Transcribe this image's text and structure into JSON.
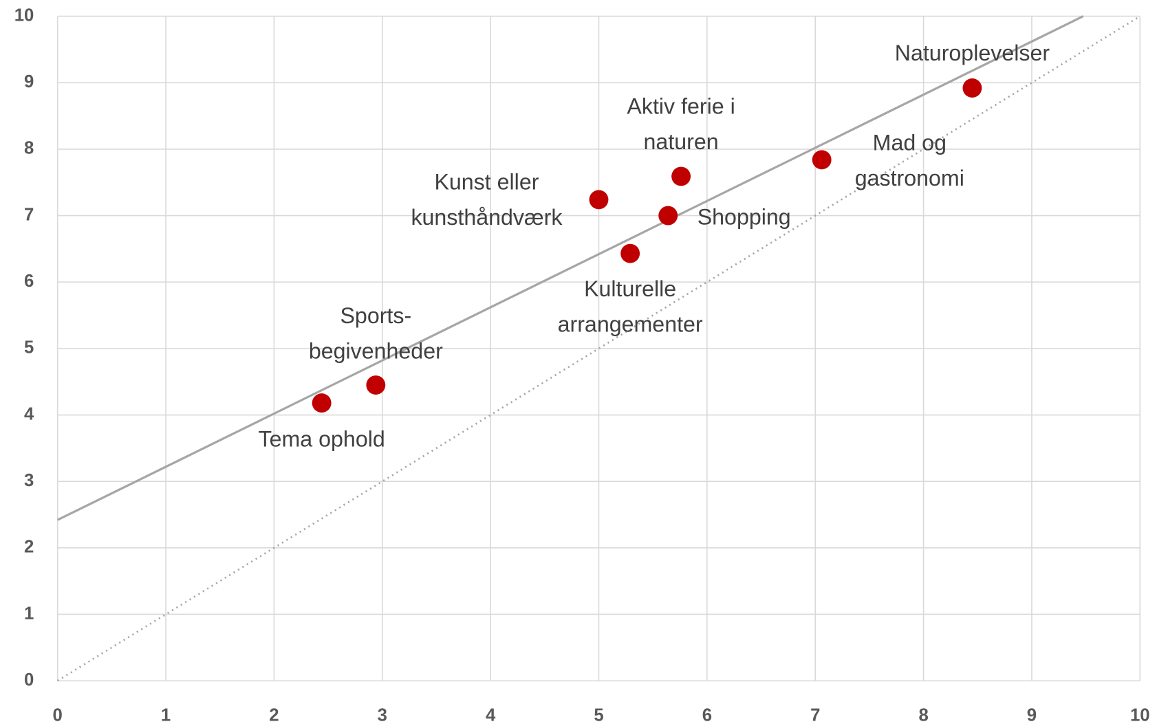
{
  "chart_data": {
    "type": "scatter",
    "labels": [
      [
        "Tema ophold"
      ],
      [
        "Sports-",
        "begivenheder"
      ],
      [
        "Kunst eller",
        "kunsthåndværk"
      ],
      [
        "Kulturelle",
        "arrangementer"
      ],
      [
        "Shopping"
      ],
      [
        "Aktiv ferie i",
        "naturen"
      ],
      [
        "Mad og",
        "gastronomi"
      ],
      [
        "Naturoplevelser"
      ]
    ],
    "x": [
      2.44,
      2.94,
      5.0,
      5.29,
      5.64,
      5.76,
      7.06,
      8.45
    ],
    "y": [
      4.18,
      4.45,
      7.24,
      6.43,
      7.0,
      7.59,
      7.84,
      8.92
    ],
    "color": "#c00000",
    "trendline": {
      "slope": 0.8,
      "intercept": 2.42,
      "color": "#a6a6a6"
    },
    "diagonal": true,
    "xlim": [
      0,
      10
    ],
    "ylim": [
      0,
      10
    ],
    "xticks": [
      0,
      1,
      2,
      3,
      4,
      5,
      6,
      7,
      8,
      9,
      10
    ],
    "yticks": [
      0,
      1,
      2,
      3,
      4,
      5,
      6,
      7,
      8,
      9,
      10
    ],
    "grid": true
  }
}
